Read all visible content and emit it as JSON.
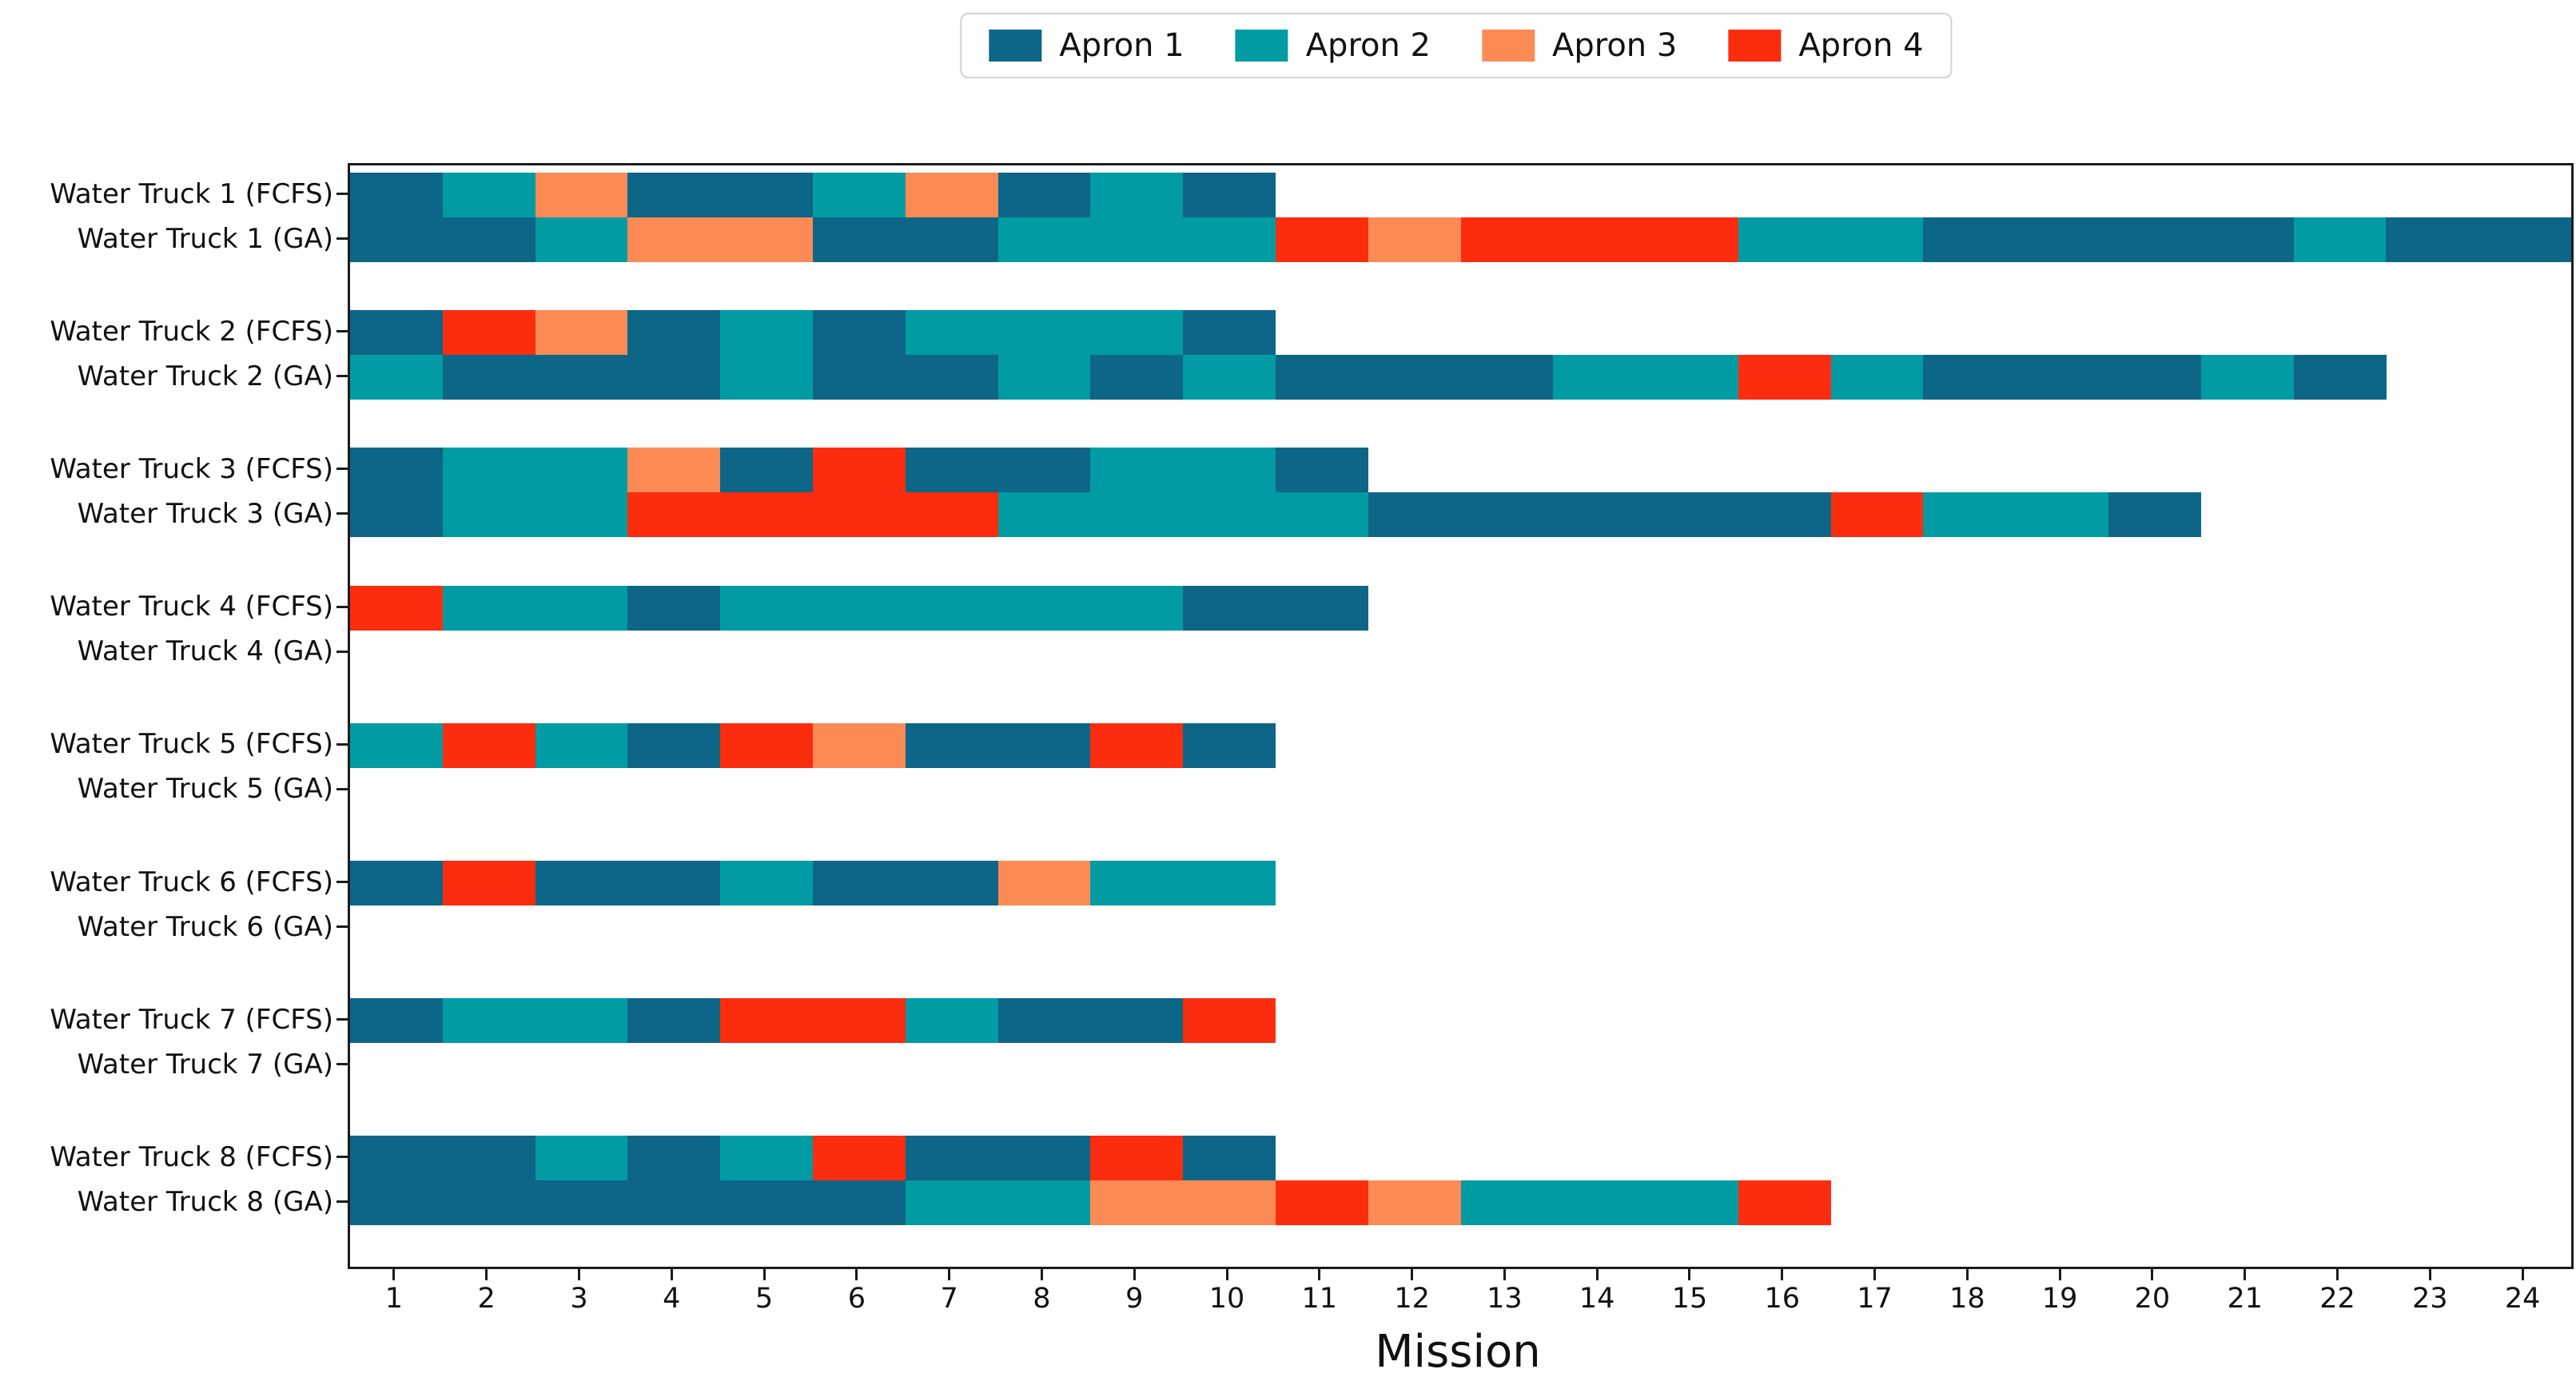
{
  "chart_data": {
    "type": "bar",
    "subtype": "gantt-mission-schedule",
    "orientation": "horizontal",
    "title": "",
    "xlabel": "Mission",
    "ylabel": "",
    "xlim": [
      0.5,
      24.5
    ],
    "x_ticks": [
      1,
      2,
      3,
      4,
      5,
      6,
      7,
      8,
      9,
      10,
      11,
      12,
      13,
      14,
      15,
      16,
      17,
      18,
      19,
      20,
      21,
      22,
      23,
      24
    ],
    "grid": false,
    "legend": {
      "position": "top-center",
      "entries": [
        {
          "label": "Apron 1",
          "color": "#0d6687"
        },
        {
          "label": "Apron 2",
          "color": "#019ba3"
        },
        {
          "label": "Apron 3",
          "color": "#fc8a55"
        },
        {
          "label": "Apron 4",
          "color": "#fb2d0e"
        }
      ]
    },
    "apron_colors": {
      "1": "#0d6687",
      "2": "#019ba3",
      "3": "#fc8a55",
      "4": "#fb2d0e"
    },
    "rows": [
      {
        "label": "Water Truck 1 (FCFS)",
        "start_mission": 1,
        "aprons": [
          1,
          2,
          3,
          1,
          1,
          2,
          3,
          1,
          2,
          1
        ]
      },
      {
        "label": "Water Truck 1 (GA)",
        "start_mission": 1,
        "aprons": [
          1,
          1,
          2,
          3,
          3,
          1,
          1,
          2,
          2,
          2,
          4,
          3,
          4,
          4,
          4,
          2,
          2,
          1,
          1,
          1,
          1,
          2,
          1,
          1
        ]
      },
      {
        "label": "Water Truck 2 (FCFS)",
        "start_mission": 1,
        "aprons": [
          1,
          4,
          3,
          1,
          2,
          1,
          2,
          2,
          2,
          1
        ]
      },
      {
        "label": "Water Truck 2 (GA)",
        "start_mission": 1,
        "aprons": [
          2,
          1,
          1,
          1,
          2,
          1,
          1,
          2,
          1,
          2,
          1,
          1,
          1,
          2,
          2,
          4,
          2,
          1,
          1,
          1,
          2,
          1
        ]
      },
      {
        "label": "Water Truck 3 (FCFS)",
        "start_mission": 1,
        "aprons": [
          1,
          2,
          2,
          3,
          1,
          4,
          1,
          1,
          2,
          2,
          1
        ]
      },
      {
        "label": "Water Truck 3 (GA)",
        "start_mission": 1,
        "aprons": [
          1,
          2,
          2,
          4,
          4,
          4,
          4,
          2,
          2,
          2,
          2,
          1,
          1,
          1,
          1,
          1,
          4,
          2,
          2,
          1
        ]
      },
      {
        "label": "Water Truck 4 (FCFS)",
        "start_mission": 1,
        "aprons": [
          4,
          2,
          2,
          1,
          2,
          2,
          2,
          2,
          2,
          1,
          1
        ]
      },
      {
        "label": "Water Truck 4 (GA)",
        "start_mission": 1,
        "aprons": []
      },
      {
        "label": "Water Truck 5 (FCFS)",
        "start_mission": 1,
        "aprons": [
          2,
          4,
          2,
          1,
          4,
          3,
          1,
          1,
          4,
          1
        ]
      },
      {
        "label": "Water Truck 5 (GA)",
        "start_mission": 1,
        "aprons": []
      },
      {
        "label": "Water Truck 6 (FCFS)",
        "start_mission": 1,
        "aprons": [
          1,
          4,
          1,
          1,
          2,
          1,
          1,
          3,
          2,
          2
        ]
      },
      {
        "label": "Water Truck 6 (GA)",
        "start_mission": 1,
        "aprons": []
      },
      {
        "label": "Water Truck 7 (FCFS)",
        "start_mission": 1,
        "aprons": [
          1,
          2,
          2,
          1,
          4,
          4,
          2,
          1,
          1,
          4
        ]
      },
      {
        "label": "Water Truck 7 (GA)",
        "start_mission": 1,
        "aprons": []
      },
      {
        "label": "Water Truck 8 (FCFS)",
        "start_mission": 1,
        "aprons": [
          1,
          1,
          2,
          1,
          2,
          4,
          1,
          1,
          4,
          1
        ]
      },
      {
        "label": "Water Truck 8 (GA)",
        "start_mission": 1,
        "aprons": [
          1,
          1,
          1,
          1,
          1,
          1,
          2,
          2,
          3,
          3,
          4,
          3,
          2,
          2,
          2,
          4
        ]
      }
    ]
  }
}
